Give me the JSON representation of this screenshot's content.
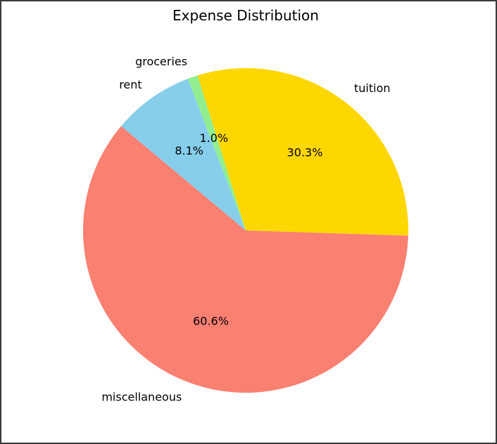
{
  "chart_data": {
    "type": "pie",
    "title": "Expense Distribution",
    "slices": [
      {
        "label": "miscellaneous",
        "pct_label": "60.6%",
        "value": 60.6,
        "color": "#FA8072"
      },
      {
        "label": "tuition",
        "pct_label": "30.3%",
        "value": 30.3,
        "color": "#FFD700"
      },
      {
        "label": "groceries",
        "pct_label": "1.0%",
        "value": 1.0,
        "color": "#90EE90"
      },
      {
        "label": "rent",
        "pct_label": "8.1%",
        "value": 8.1,
        "color": "#87CEEB"
      }
    ],
    "start_angle_deg": 140,
    "direction": "counterclockwise",
    "legend": "none"
  }
}
